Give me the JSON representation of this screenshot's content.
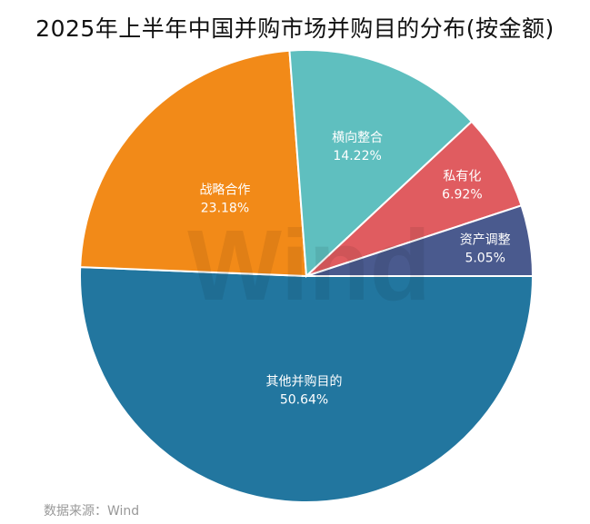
{
  "chart_data": {
    "type": "pie",
    "title": "2025年上半年中国并购市场并购目的分布(按金额)",
    "slices": [
      {
        "label": "其他并购目的",
        "value": 50.64,
        "display": "50.64%",
        "color": "#22769f"
      },
      {
        "label": "战略合作",
        "value": 23.18,
        "display": "23.18%",
        "color": "#f28a18"
      },
      {
        "label": "横向整合",
        "value": 14.22,
        "display": "14.22%",
        "color": "#5fbfbf"
      },
      {
        "label": "私有化",
        "value": 6.92,
        "display": "6.92%",
        "color": "#e05c60"
      },
      {
        "label": "资产调整",
        "value": 5.05,
        "display": "5.05%",
        "color": "#4a5a8e"
      }
    ],
    "start_angle": "east",
    "direction": "clockwise",
    "data_labels": "inside"
  },
  "watermark": "Wind",
  "source": "数据来源：Wind"
}
